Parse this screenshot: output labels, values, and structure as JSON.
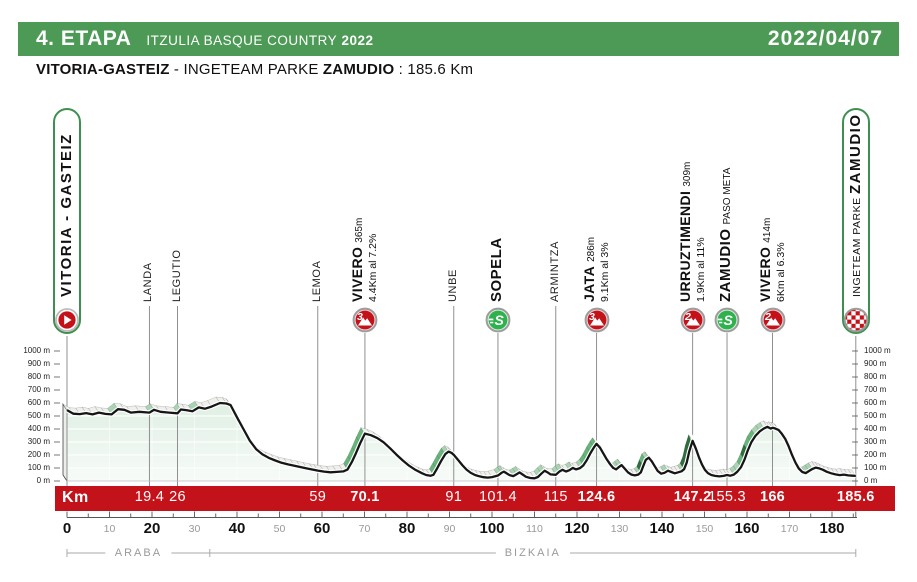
{
  "header": {
    "stage": "4. ETAPA",
    "race": "ITZULIA BASQUE COUNTRY",
    "year": "2022",
    "date": "2022/04/07"
  },
  "route": {
    "start": "VITORIA-GASTEIZ",
    "sep1": " - ",
    "finish_prefix": "INGETEAM PARKE",
    "finish": "ZAMUDIO",
    "sep2": " : ",
    "distance": "185.6 Km"
  },
  "colors": {
    "header_green": "#4d9a56",
    "bar_red": "#c4121a",
    "sprint_green": "#2fb14e",
    "climb_red": "#c4121a",
    "pill_border": "#3f9050",
    "profile_line": "#161616",
    "ref_line": "#909090",
    "flat": "#efefec",
    "climb_light": "#a9d4b2",
    "climb_medium": "#67b57b",
    "climb_steep": "#2c6e3c",
    "area_top": "#cfe7d6",
    "area_bottom": "#f7fbf8"
  },
  "waypoints": [
    {
      "name": "VITORIA - GASTEIZ",
      "type": "start",
      "km": 0
    },
    {
      "name": "LANDA",
      "type": "plain",
      "km": 19.4,
      "km_label": "19.4",
      "km_bold": false
    },
    {
      "name": "LEGUTIO",
      "type": "plain",
      "km": 26,
      "km_label": "26",
      "km_bold": false
    },
    {
      "name": "LEMOA",
      "type": "plain",
      "km": 59,
      "km_label": "59",
      "km_bold": false
    },
    {
      "name": "VIVERO",
      "type": "climb",
      "category": "3",
      "altitude": "365m",
      "detail": "4.4Km al 7.2%",
      "km": 70.1,
      "km_label": "70.1",
      "km_bold": true
    },
    {
      "name": "UNBE",
      "type": "plain",
      "km": 91,
      "km_label": "91",
      "km_bold": false
    },
    {
      "name": "SOPELA",
      "type": "sprint",
      "km": 101.4,
      "km_label": "101.4",
      "km_bold": false
    },
    {
      "name": "ARMINTZA",
      "type": "plain",
      "km": 115,
      "km_label": "115",
      "km_bold": false
    },
    {
      "name": "JATA",
      "type": "climb",
      "category": "3",
      "altitude": "286m",
      "detail": "9.1Km al 3%",
      "km": 124.6,
      "km_label": "124.6",
      "km_bold": true
    },
    {
      "name": "URRUZTIMENDI",
      "type": "climb",
      "category": "2",
      "altitude": "309m",
      "detail": "1.9Km al 11%",
      "km": 147.2,
      "km_label": "147.2",
      "km_bold": true
    },
    {
      "name": "ZAMUDIO",
      "type": "sprint",
      "altitude": "PASO META",
      "km": 155.3,
      "km_label": "155.3",
      "km_bold": false
    },
    {
      "name": "VIVERO",
      "type": "climb",
      "category": "2",
      "altitude": "414m",
      "detail": "6Km al 6.3%",
      "km": 166,
      "km_label": "166",
      "km_bold": true
    },
    {
      "name": "ZAMUDIO",
      "type": "finish",
      "prefix": "INGETEAM PARKE",
      "km": 185.6,
      "km_label": "185.6",
      "km_bold": true
    }
  ],
  "chart_data": {
    "type": "area",
    "title": "Itzulia Basque Country 2022 stage 4 elevation profile",
    "xlabel": "Km",
    "ylabel": "m",
    "x_axis": {
      "min": 0,
      "max": 185.6,
      "major_tick": 20,
      "minor_tick": 10,
      "small_tick": 5
    },
    "y_axis": {
      "min": 0,
      "max": 1000,
      "tick": 100,
      "unit": "m"
    },
    "regions": [
      {
        "label": "ARABA",
        "from": 0,
        "to": 33.6
      },
      {
        "label": "BIZKAIA",
        "from": 33.6,
        "to": 185.6
      }
    ],
    "profile_km_elevation": [
      [
        0,
        545
      ],
      [
        1.5,
        518
      ],
      [
        3,
        515
      ],
      [
        4.5,
        522
      ],
      [
        6,
        512
      ],
      [
        7.5,
        526
      ],
      [
        9,
        516
      ],
      [
        10.5,
        512
      ],
      [
        12,
        552
      ],
      [
        13.5,
        548
      ],
      [
        15,
        526
      ],
      [
        17,
        532
      ],
      [
        19.4,
        526
      ],
      [
        20.5,
        548
      ],
      [
        22,
        532
      ],
      [
        24,
        526
      ],
      [
        26,
        521
      ],
      [
        26.8,
        550
      ],
      [
        28,
        545
      ],
      [
        29.5,
        536
      ],
      [
        31,
        566
      ],
      [
        32.5,
        556
      ],
      [
        34,
        572
      ],
      [
        36,
        600
      ],
      [
        37.5,
        596
      ],
      [
        38.5,
        584
      ],
      [
        40,
        490
      ],
      [
        41.5,
        400
      ],
      [
        43,
        310
      ],
      [
        44.5,
        245
      ],
      [
        46,
        205
      ],
      [
        47.5,
        178
      ],
      [
        49,
        158
      ],
      [
        50.5,
        140
      ],
      [
        52,
        128
      ],
      [
        53.5,
        118
      ],
      [
        55,
        107
      ],
      [
        56.5,
        96
      ],
      [
        58,
        86
      ],
      [
        59,
        80
      ],
      [
        60.5,
        72
      ],
      [
        62,
        67
      ],
      [
        63.5,
        70
      ],
      [
        65,
        74
      ],
      [
        66,
        88
      ],
      [
        67,
        145
      ],
      [
        68,
        215
      ],
      [
        69,
        292
      ],
      [
        70.1,
        365
      ],
      [
        71.5,
        352
      ],
      [
        73,
        330
      ],
      [
        74.5,
        298
      ],
      [
        76,
        252
      ],
      [
        77.5,
        203
      ],
      [
        79,
        158
      ],
      [
        80.5,
        118
      ],
      [
        82,
        85
      ],
      [
        83.5,
        60
      ],
      [
        84.5,
        46
      ],
      [
        85.5,
        40
      ],
      [
        86.2,
        48
      ],
      [
        87,
        92
      ],
      [
        88,
        152
      ],
      [
        89,
        207
      ],
      [
        89.8,
        226
      ],
      [
        90.5,
        216
      ],
      [
        91,
        201
      ],
      [
        92,
        162
      ],
      [
        93,
        122
      ],
      [
        94,
        88
      ],
      [
        95,
        62
      ],
      [
        96,
        46
      ],
      [
        97,
        36
      ],
      [
        98,
        29
      ],
      [
        99,
        26
      ],
      [
        100,
        30
      ],
      [
        101.4,
        42
      ],
      [
        102.2,
        62
      ],
      [
        102.8,
        72
      ],
      [
        103.5,
        58
      ],
      [
        104.2,
        44
      ],
      [
        105,
        38
      ],
      [
        105.8,
        52
      ],
      [
        106.5,
        66
      ],
      [
        107.2,
        50
      ],
      [
        108,
        32
      ],
      [
        109,
        23
      ],
      [
        110,
        21
      ],
      [
        110.8,
        31
      ],
      [
        111.6,
        56
      ],
      [
        112.4,
        79
      ],
      [
        113,
        68
      ],
      [
        113.8,
        51
      ],
      [
        115,
        48
      ],
      [
        115.8,
        71
      ],
      [
        116.6,
        86
      ],
      [
        117.4,
        73
      ],
      [
        118.2,
        83
      ],
      [
        119,
        101
      ],
      [
        119.8,
        89
      ],
      [
        120.7,
        99
      ],
      [
        121.5,
        121
      ],
      [
        122.3,
        161
      ],
      [
        123.2,
        216
      ],
      [
        124,
        259
      ],
      [
        124.6,
        286
      ],
      [
        125.4,
        256
      ],
      [
        126.2,
        211
      ],
      [
        127,
        166
      ],
      [
        127.8,
        129
      ],
      [
        128.5,
        101
      ],
      [
        129.2,
        89
      ],
      [
        129.8,
        106
      ],
      [
        130.5,
        122
      ],
      [
        131.2,
        96
      ],
      [
        132,
        66
      ],
      [
        132.8,
        49
      ],
      [
        133.6,
        43
      ],
      [
        134.4,
        49
      ],
      [
        135,
        66
      ],
      [
        135.6,
        116
      ],
      [
        136.2,
        163
      ],
      [
        136.9,
        179
      ],
      [
        137.6,
        151
      ],
      [
        138.3,
        113
      ],
      [
        139,
        76
      ],
      [
        139.8,
        56
      ],
      [
        140.6,
        63
      ],
      [
        141.4,
        79
      ],
      [
        142.2,
        69
      ],
      [
        143,
        59
      ],
      [
        143.8,
        67
      ],
      [
        144.6,
        75
      ],
      [
        145.2,
        91
      ],
      [
        145.8,
        141
      ],
      [
        146.4,
        226
      ],
      [
        147.2,
        309
      ],
      [
        148,
        246
      ],
      [
        148.7,
        181
      ],
      [
        149.4,
        126
      ],
      [
        150.1,
        86
      ],
      [
        150.8,
        61
      ],
      [
        151.6,
        46
      ],
      [
        152.5,
        39
      ],
      [
        153.5,
        35
      ],
      [
        154.5,
        39
      ],
      [
        155.3,
        46
      ],
      [
        156.1,
        41
      ],
      [
        156.9,
        49
      ],
      [
        157.7,
        71
      ],
      [
        158.6,
        106
      ],
      [
        159.4,
        165
      ],
      [
        160.2,
        235
      ],
      [
        161,
        298
      ],
      [
        162,
        348
      ],
      [
        163,
        382
      ],
      [
        164,
        405
      ],
      [
        164.8,
        417
      ],
      [
        165.6,
        403
      ],
      [
        166,
        409
      ],
      [
        166.6,
        405
      ],
      [
        167.4,
        393
      ],
      [
        168.2,
        363
      ],
      [
        169,
        323
      ],
      [
        169.8,
        266
      ],
      [
        170.6,
        201
      ],
      [
        171.4,
        141
      ],
      [
        172.2,
        96
      ],
      [
        173,
        69
      ],
      [
        173.8,
        61
      ],
      [
        174.6,
        77
      ],
      [
        175.4,
        93
      ],
      [
        176.2,
        103
      ],
      [
        177,
        97
      ],
      [
        177.8,
        87
      ],
      [
        178.8,
        71
      ],
      [
        179.8,
        59
      ],
      [
        180.8,
        51
      ],
      [
        181.8,
        45
      ],
      [
        182.8,
        49
      ],
      [
        183.8,
        43
      ],
      [
        184.8,
        41
      ],
      [
        185.6,
        39
      ]
    ]
  }
}
